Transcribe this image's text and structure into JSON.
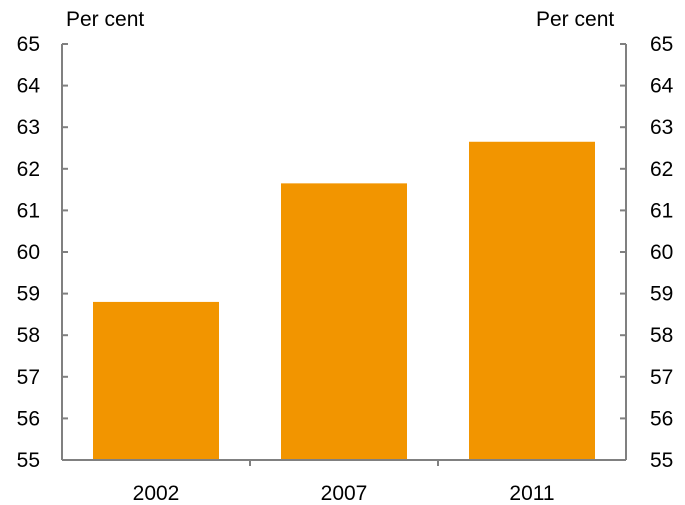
{
  "chart_data": {
    "type": "bar",
    "categories": [
      "2002",
      "2007",
      "2011"
    ],
    "values": [
      58.8,
      61.65,
      62.65
    ],
    "title": "",
    "xlabel": "",
    "ylabel_left": "Per cent",
    "ylabel_right": "Per cent",
    "ylim": [
      55,
      65
    ],
    "yticks": [
      "55",
      "56",
      "57",
      "58",
      "59",
      "60",
      "61",
      "62",
      "63",
      "64",
      "65"
    ],
    "bar_color": "#F29500",
    "axis_color": "#808080",
    "grid": false
  }
}
